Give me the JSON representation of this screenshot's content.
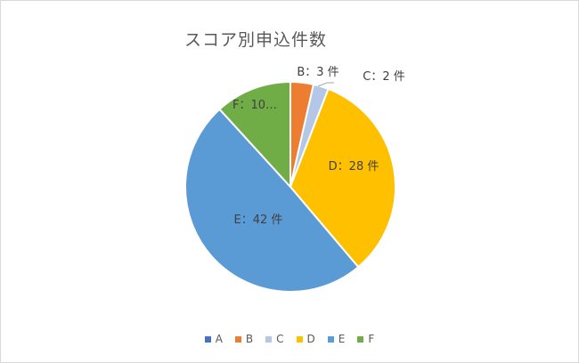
{
  "chart_data": {
    "type": "pie",
    "title": "スコア別申込件数",
    "categories": [
      "A",
      "B",
      "C",
      "D",
      "E",
      "F"
    ],
    "values": [
      0,
      3,
      2,
      28,
      42,
      10
    ],
    "colors": [
      "#4472C4",
      "#ED7D31",
      "#B4C7E7",
      "#FFC000",
      "#5B9BD5",
      "#70AD47"
    ],
    "data_labels": [
      "",
      "B：3 件",
      "C：2 件",
      "D：28 件",
      "E：42 件",
      "F：10…"
    ],
    "legend_position": "bottom"
  }
}
